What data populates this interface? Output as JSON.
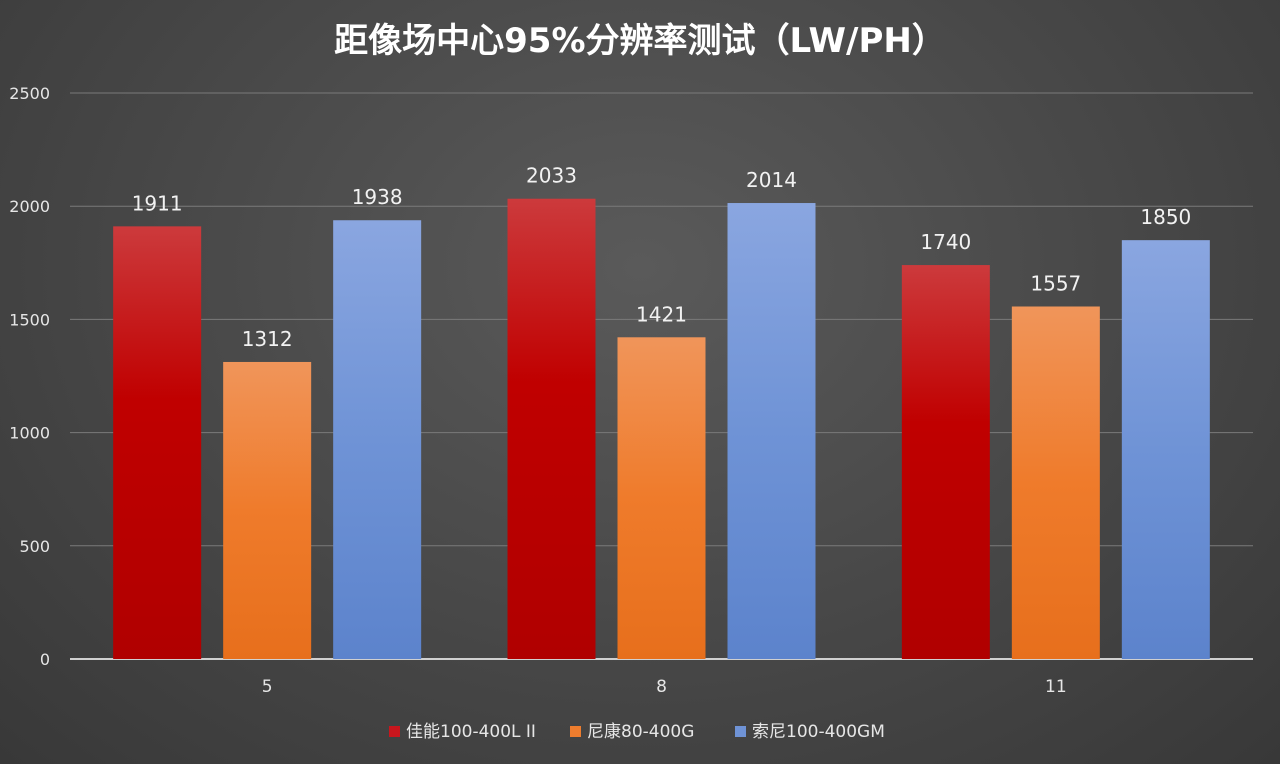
{
  "chart_data": {
    "type": "bar",
    "title": "距像场中心95%分辨率测试（LW/PH）",
    "xlabel": "",
    "ylabel": "",
    "categories": [
      "5",
      "8",
      "11"
    ],
    "ylim": [
      0,
      2500
    ],
    "yticks": [
      0,
      500,
      1000,
      1500,
      2000,
      2500
    ],
    "grid": true,
    "legend_position": "bottom",
    "series": [
      {
        "name": "佳能100-400L II",
        "values": [
          1911,
          2033,
          1740
        ],
        "color": "#c8161d"
      },
      {
        "name": "尼康80-400G",
        "values": [
          1312,
          1421,
          1557
        ],
        "color": "#ee7d2e"
      },
      {
        "name": "索尼100-400GM",
        "values": [
          1938,
          2014,
          1850
        ],
        "color": "#6f93d6"
      }
    ]
  }
}
